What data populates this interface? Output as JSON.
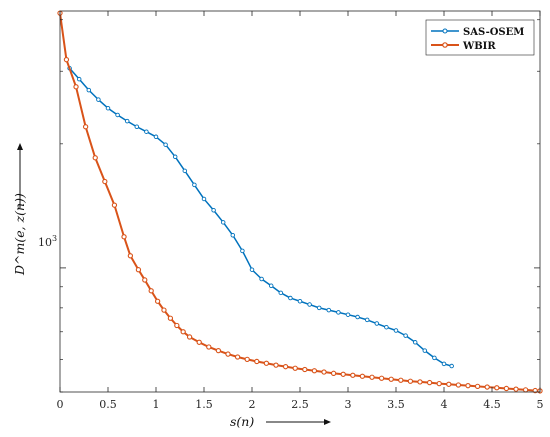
{
  "chart_data": {
    "type": "line",
    "xlabel": "s(n)",
    "ylabel": "D^m(e, z(n))",
    "y_scale": "log",
    "xlim": [
      0,
      5
    ],
    "ylim": [
      500,
      4200
    ],
    "x_ticks": [
      0,
      0.5,
      1,
      1.5,
      2,
      2.5,
      3,
      3.5,
      4,
      4.5,
      5
    ],
    "x_tick_labels": [
      "0",
      "0.5",
      "1",
      "1.5",
      "2",
      "2.5",
      "3",
      "3.5",
      "4",
      "4.5",
      "5"
    ],
    "y_tick_label": {
      "base": "10",
      "exponent": "3",
      "value": 1000
    },
    "grid": false,
    "legend_position": "top-right",
    "series": [
      {
        "name": "SAS-OSEM",
        "color": "#0072BD",
        "x": [
          0.1,
          0.2,
          0.3,
          0.4,
          0.5,
          0.6,
          0.7,
          0.8,
          0.9,
          1.0,
          1.1,
          1.2,
          1.3,
          1.4,
          1.5,
          1.6,
          1.7,
          1.8,
          1.9,
          2.0,
          2.1,
          2.2,
          2.3,
          2.4,
          2.5,
          2.6,
          2.7,
          2.8,
          2.9,
          3.0,
          3.1,
          3.2,
          3.3,
          3.4,
          3.5,
          3.6,
          3.7,
          3.8,
          3.9,
          4.0,
          4.08
        ],
        "y": [
          3050,
          2870,
          2700,
          2560,
          2440,
          2350,
          2270,
          2200,
          2140,
          2080,
          1990,
          1860,
          1720,
          1590,
          1470,
          1380,
          1290,
          1200,
          1100,
          990,
          940,
          905,
          870,
          845,
          830,
          815,
          800,
          790,
          780,
          770,
          760,
          748,
          733,
          718,
          705,
          685,
          660,
          630,
          605,
          585,
          578
        ]
      },
      {
        "name": "WBIR",
        "color": "#D95319",
        "x": [
          0.0,
          0.067,
          0.167,
          0.267,
          0.367,
          0.467,
          0.567,
          0.667,
          0.733,
          0.817,
          0.883,
          0.95,
          1.017,
          1.083,
          1.15,
          1.217,
          1.283,
          1.35,
          1.45,
          1.55,
          1.65,
          1.75,
          1.85,
          1.95,
          2.05,
          2.15,
          2.25,
          2.35,
          2.45,
          2.55,
          2.65,
          2.75,
          2.85,
          2.95,
          3.05,
          3.15,
          3.25,
          3.35,
          3.45,
          3.55,
          3.65,
          3.75,
          3.85,
          3.95,
          4.05,
          4.15,
          4.25,
          4.35,
          4.45,
          4.55,
          4.65,
          4.75,
          4.85,
          4.95,
          5.0
        ],
        "y": [
          4150,
          3200,
          2750,
          2200,
          1850,
          1620,
          1420,
          1190,
          1070,
          990,
          935,
          880,
          830,
          790,
          755,
          725,
          700,
          680,
          660,
          643,
          630,
          618,
          608,
          600,
          593,
          587,
          581,
          576,
          571,
          567,
          563,
          559,
          555,
          552,
          549,
          546,
          543,
          540,
          537,
          534,
          531,
          529,
          527,
          524,
          522,
          520,
          518,
          516,
          514,
          512,
          510,
          508,
          506,
          504,
          503
        ]
      }
    ]
  }
}
